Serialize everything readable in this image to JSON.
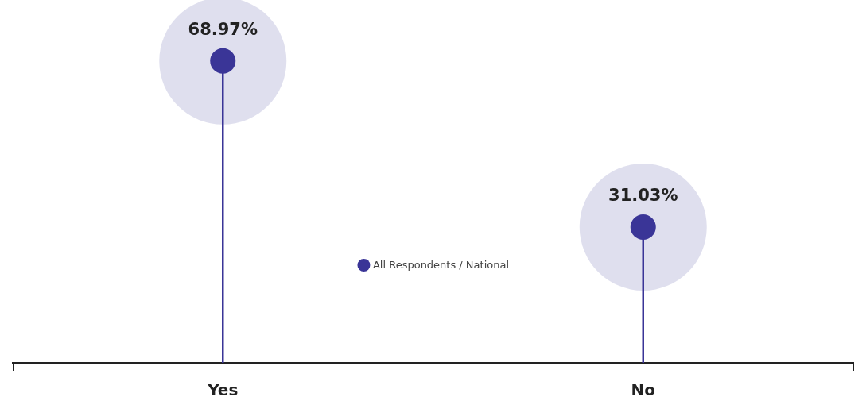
{
  "chart_data": {
    "type": "lollipop",
    "categories": [
      "Yes",
      "No"
    ],
    "series": [
      {
        "name": "All Respondents / National",
        "color": "#3a3597",
        "values": [
          68.97,
          31.03
        ],
        "value_labels": [
          "68.97%",
          "31.03%"
        ]
      }
    ],
    "legend": "center",
    "marker": "circle"
  }
}
